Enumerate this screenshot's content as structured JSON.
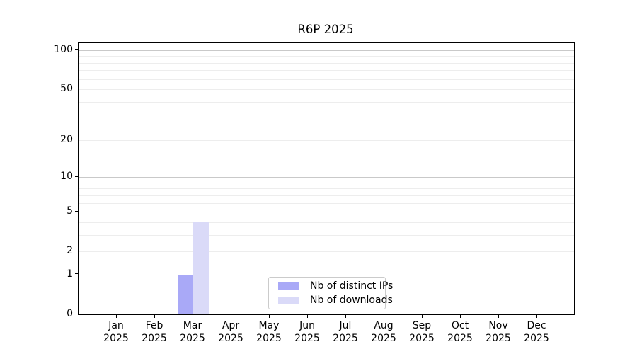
{
  "chart_data": {
    "type": "bar",
    "title": "R6P 2025",
    "categories": [
      {
        "month": "Jan",
        "year": "2025"
      },
      {
        "month": "Feb",
        "year": "2025"
      },
      {
        "month": "Mar",
        "year": "2025"
      },
      {
        "month": "Apr",
        "year": "2025"
      },
      {
        "month": "May",
        "year": "2025"
      },
      {
        "month": "Jun",
        "year": "2025"
      },
      {
        "month": "Jul",
        "year": "2025"
      },
      {
        "month": "Aug",
        "year": "2025"
      },
      {
        "month": "Sep",
        "year": "2025"
      },
      {
        "month": "Oct",
        "year": "2025"
      },
      {
        "month": "Nov",
        "year": "2025"
      },
      {
        "month": "Dec",
        "year": "2025"
      }
    ],
    "series": [
      {
        "name": "Nb of distinct IPs",
        "color": "#a9a9f7",
        "values": [
          0,
          0,
          1,
          0,
          0,
          0,
          0,
          0,
          0,
          0,
          0,
          0
        ]
      },
      {
        "name": "Nb of downloads",
        "color": "#dadaf8",
        "values": [
          0,
          0,
          4,
          0,
          0,
          0,
          0,
          0,
          0,
          0,
          0,
          0
        ]
      }
    ],
    "xlabel": "",
    "ylabel": "",
    "yscale": "log1p",
    "ylim": [
      0,
      113
    ],
    "yticks": [
      0,
      1,
      2,
      5,
      10,
      20,
      50,
      100
    ],
    "yticks_minor": [
      3,
      4,
      6,
      7,
      8,
      9,
      15,
      30,
      40,
      60,
      70,
      80,
      90
    ],
    "grid": "horizontal",
    "legend_position": "lower center inside",
    "colors": {
      "major_grid": "#c9c9c9",
      "minor_grid": "#ededed",
      "spine": "#000000",
      "text": "#000000",
      "background": "#ffffff"
    }
  }
}
